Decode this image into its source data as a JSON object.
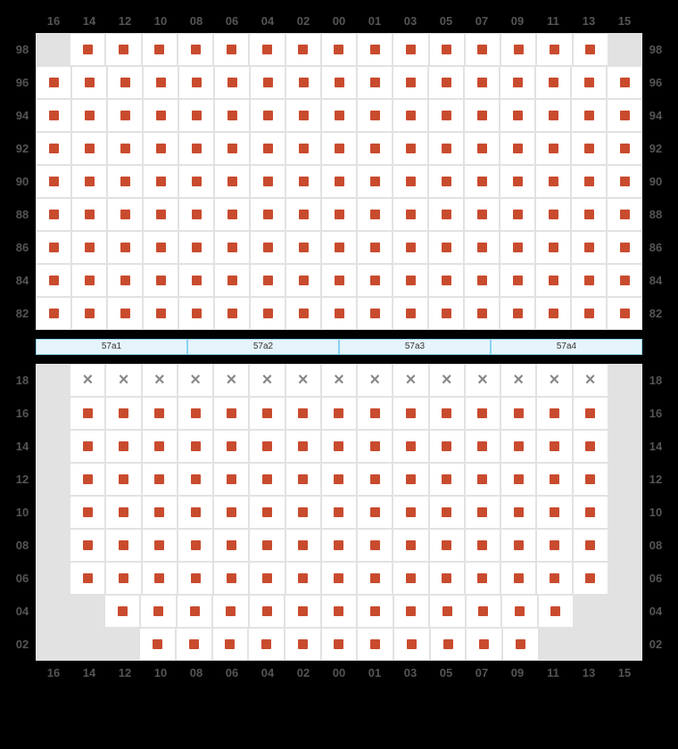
{
  "colors": {
    "background": "#000000",
    "grid_bg": "#e2e2e2",
    "seat_bg": "#ffffff",
    "seat_border": "#e2e2e2",
    "marker": "#c94b2e",
    "xmark": "#888888",
    "label": "#555555",
    "zone_bg": "#e6f4fb",
    "zone_border": "#8ad2f0"
  },
  "columns": [
    "16",
    "14",
    "12",
    "10",
    "08",
    "06",
    "04",
    "02",
    "00",
    "01",
    "03",
    "05",
    "07",
    "09",
    "11",
    "13",
    "15"
  ],
  "upper": {
    "rows": [
      "98",
      "96",
      "94",
      "92",
      "90",
      "88",
      "86",
      "84",
      "82"
    ],
    "blanks": [
      [
        0,
        0
      ],
      [
        0,
        16
      ]
    ]
  },
  "zones": [
    "57a1",
    "57a2",
    "57a3",
    "57a4"
  ],
  "lower": {
    "rows": [
      "18",
      "16",
      "14",
      "12",
      "10",
      "08",
      "06",
      "04",
      "02"
    ],
    "blanks": [
      [
        0,
        0
      ],
      [
        0,
        16
      ],
      [
        1,
        0
      ],
      [
        1,
        16
      ],
      [
        2,
        0
      ],
      [
        2,
        16
      ],
      [
        3,
        0
      ],
      [
        3,
        16
      ],
      [
        4,
        0
      ],
      [
        4,
        16
      ],
      [
        5,
        0
      ],
      [
        5,
        16
      ],
      [
        6,
        0
      ],
      [
        6,
        16
      ],
      [
        7,
        0
      ],
      [
        7,
        1
      ],
      [
        7,
        15
      ],
      [
        7,
        16
      ],
      [
        8,
        0
      ],
      [
        8,
        1
      ],
      [
        8,
        2
      ],
      [
        8,
        14
      ],
      [
        8,
        15
      ],
      [
        8,
        16
      ]
    ],
    "xrow": 0
  }
}
